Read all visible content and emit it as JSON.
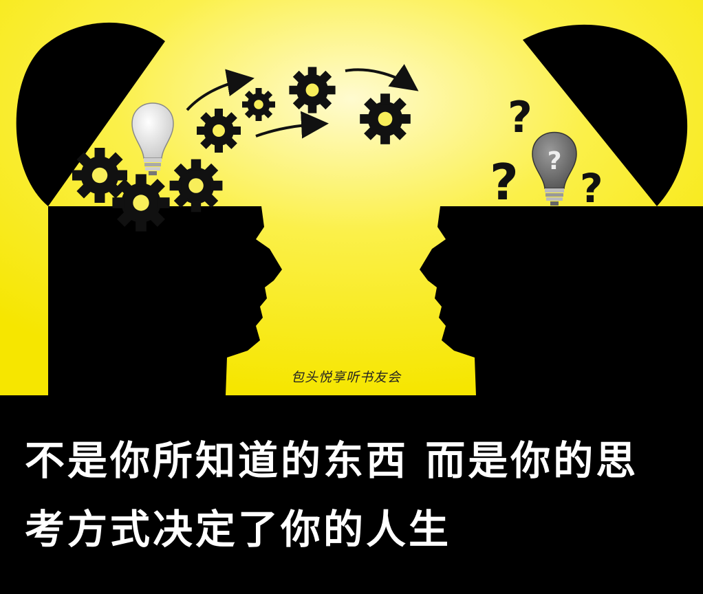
{
  "image": {
    "watermark": "包头悦享听书友会",
    "caption_lines": [
      "不是你所知道的东西 而是你的思",
      "考方式决定了你的人生"
    ],
    "colors": {
      "background_yellow": "#f6e600",
      "background_highlight": "#fffbd0",
      "silhouette": "#000000",
      "caption_band": "#000000",
      "caption_text": "#ffffff"
    },
    "icons": [
      "gear-icon",
      "lightbulb-icon",
      "question-mark-icon",
      "arrow-icon"
    ]
  }
}
